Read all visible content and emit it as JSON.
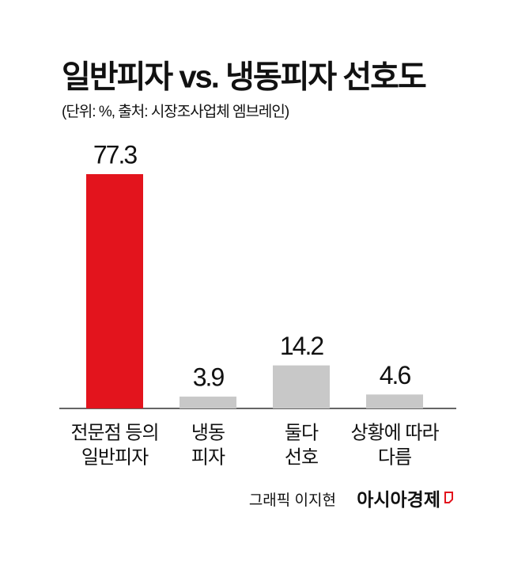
{
  "chart_data": {
    "type": "bar",
    "title": "일반피자 vs. 냉동피자 선호도",
    "subtitle": "(단위: %, 출처: 시장조사업체 엠브레인)",
    "categories": [
      [
        "전문점 등의",
        "일반피자"
      ],
      [
        "냉동",
        "피자"
      ],
      [
        "둘다",
        "선호"
      ],
      [
        "상황에 따라",
        "다름"
      ]
    ],
    "values": [
      77.3,
      3.9,
      14.2,
      4.6
    ],
    "colors": [
      "#e3141d",
      "#c8c8c8",
      "#c8c8c8",
      "#c8c8c8"
    ],
    "credit": "그래픽 이지현",
    "source_brand": "아시아경제"
  }
}
